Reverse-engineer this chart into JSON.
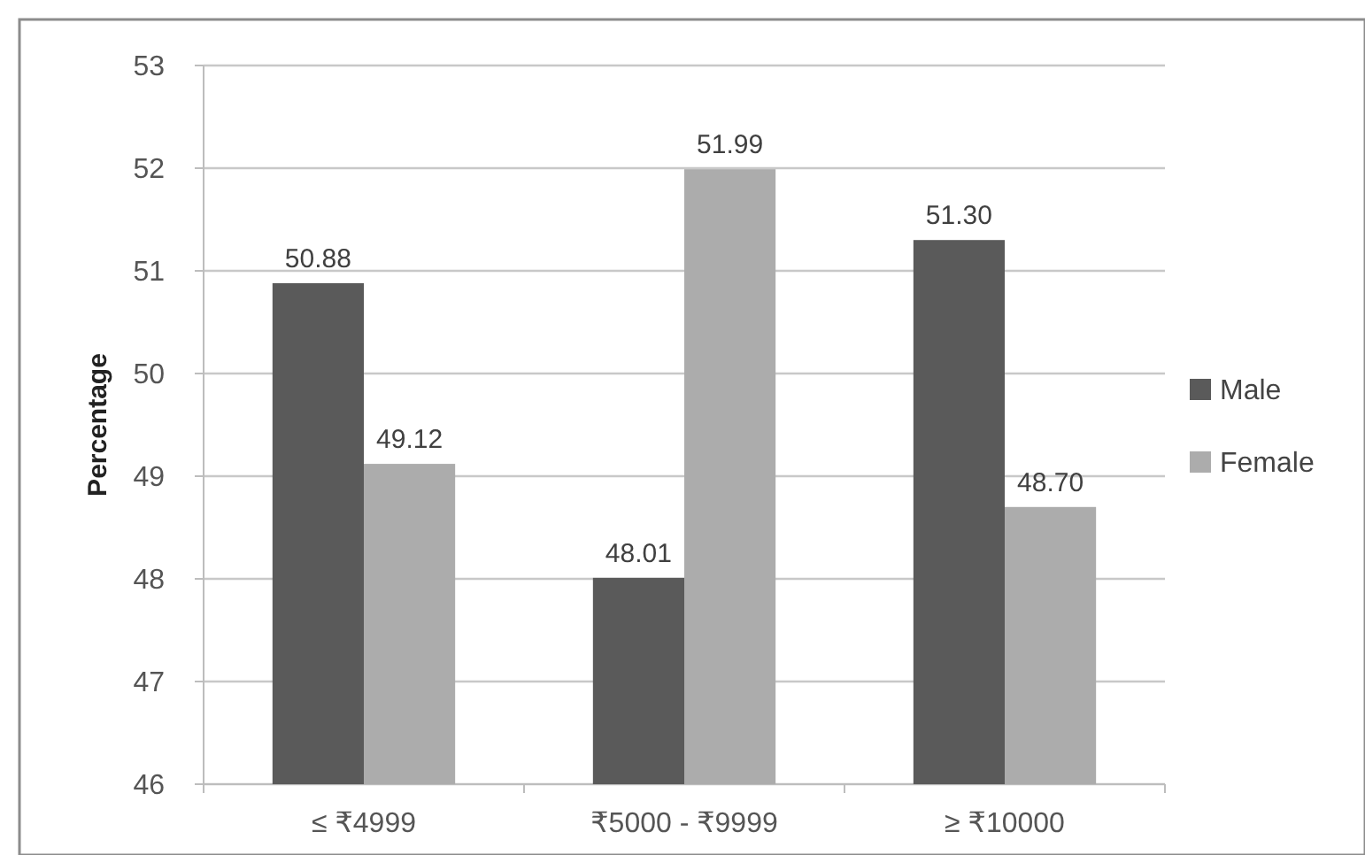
{
  "chart_data": {
    "type": "bar",
    "ylabel": "Percentage",
    "categories": [
      "≤ ₹4999",
      "₹5000 - ₹9999",
      "≥ ₹10000"
    ],
    "series": [
      {
        "name": "Male",
        "color": "#5a5a5a",
        "values": [
          50.88,
          48.01,
          51.3
        ],
        "value_labels": [
          "50.88",
          "48.01",
          "51.30"
        ]
      },
      {
        "name": "Female",
        "color": "#acacac",
        "values": [
          49.12,
          51.99,
          48.7
        ],
        "value_labels": [
          "49.12",
          "51.99",
          "48.70"
        ]
      }
    ],
    "ylim": [
      46,
      53
    ],
    "yticks": [
      46,
      47,
      48,
      49,
      50,
      51,
      52,
      53
    ],
    "grid": "y",
    "legend": "right"
  }
}
